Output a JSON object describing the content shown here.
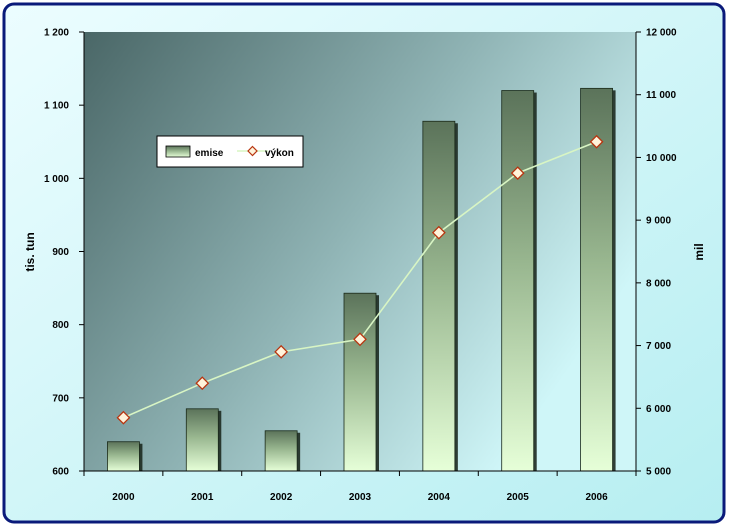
{
  "chart_data": {
    "type": "bar+line",
    "categories": [
      "2000",
      "2001",
      "2002",
      "2003",
      "2004",
      "2005",
      "2006"
    ],
    "series": [
      {
        "name": "emise",
        "type": "bar",
        "axis": "left",
        "values": [
          640,
          685,
          655,
          843,
          1078,
          1120,
          1123
        ]
      },
      {
        "name": "výkon",
        "type": "line",
        "axis": "right",
        "values": [
          5850,
          6400,
          6900,
          7100,
          8800,
          9750,
          10250
        ]
      }
    ],
    "y_left": {
      "label": "tis. tun",
      "min": 600,
      "max": 1200,
      "step": 100,
      "tick_labels": [
        "600",
        "700",
        "800",
        "900",
        "1 000",
        "1 100",
        "1 200"
      ]
    },
    "y_right": {
      "label": "mil",
      "min": 5000,
      "max": 12000,
      "step": 1000,
      "tick_labels": [
        "5 000",
        "6 000",
        "7 000",
        "8 000",
        "9 000",
        "10 000",
        "11 000",
        "12 000"
      ]
    },
    "grid": false,
    "legend_position": "upper-left inside plot",
    "colors": {
      "outer_border": "#0a1a7a",
      "background_light": "#e8fcff",
      "background_mid": "#bff0f3",
      "plot_dark": "#4d6b6b",
      "plot_light": "#c9f4f6",
      "bar_top": "#557055",
      "bar_bottom": "#e4ffd6",
      "line": "#d8f5c4",
      "marker_fill": "#fff3da",
      "marker_stroke": "#b83510"
    }
  }
}
